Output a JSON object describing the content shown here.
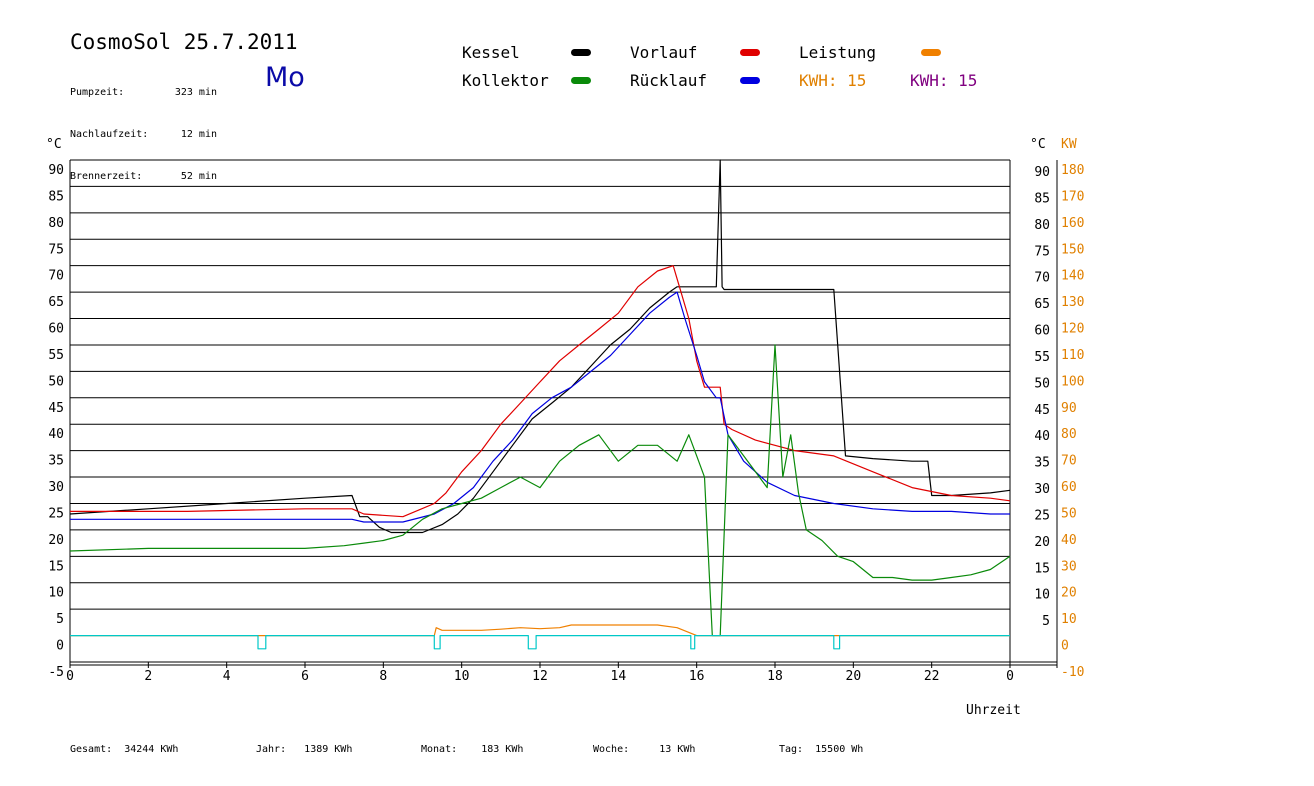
{
  "header": {
    "title": "CosmoSol 25.7.2011",
    "day": "Mo",
    "info": [
      {
        "label": "Pumpzeit:",
        "value": "323 min"
      },
      {
        "label": "Nachlaufzeit:",
        "value": "12 min"
      },
      {
        "label": "Brennerzeit:",
        "value": "52 min"
      }
    ]
  },
  "legend": {
    "items": [
      {
        "label": "Kessel",
        "color": "#000000"
      },
      {
        "label": "Vorlauf",
        "color": "#e00000"
      },
      {
        "label": "Leistung",
        "color": "#f08000"
      },
      {
        "label": "Kollektor",
        "color": "#0a8a0a"
      },
      {
        "label": "Rücklauf",
        "color": "#0000e0"
      }
    ],
    "kwh": [
      {
        "label": "KWH:",
        "value": "15",
        "color": "#e08000"
      },
      {
        "label": "KWH:",
        "value": "15",
        "color": "#800080"
      }
    ]
  },
  "footer": [
    {
      "label": "Gesamt:",
      "value": "34244 KWh"
    },
    {
      "label": "Jahr:",
      "value": "1389 KWh"
    },
    {
      "label": "Monat:",
      "value": "183 KWh"
    },
    {
      "label": "Woche:",
      "value": "13 KWh"
    },
    {
      "label": "Tag:",
      "value": "15500 Wh"
    }
  ],
  "chart_data": {
    "type": "line",
    "xlabel": "Uhrzeit",
    "ylabel_left": "°C",
    "ylabel_right_1": "°C",
    "ylabel_right_2": "KW",
    "xlim": [
      0,
      24
    ],
    "ylim": [
      -5,
      90
    ],
    "x_ticks": [
      "0",
      "2",
      "4",
      "6",
      "8",
      "10",
      "12",
      "14",
      "16",
      "18",
      "20",
      "22",
      "0"
    ],
    "y_ticks_left": [
      "-5",
      "0",
      "5",
      "10",
      "15",
      "20",
      "25",
      "30",
      "35",
      "40",
      "45",
      "50",
      "55",
      "60",
      "65",
      "70",
      "75",
      "80",
      "85",
      "90"
    ],
    "y_ticks_right": [
      "5",
      "10",
      "15",
      "20",
      "25",
      "30",
      "35",
      "40",
      "45",
      "50",
      "55",
      "60",
      "65",
      "70",
      "75",
      "80",
      "85",
      "90"
    ],
    "kw_ticks": [
      "-10",
      "0",
      "10",
      "20",
      "30",
      "40",
      "50",
      "60",
      "70",
      "80",
      "90",
      "100",
      "110",
      "120",
      "130",
      "140",
      "150",
      "160",
      "170",
      "180"
    ],
    "grid": true,
    "series": [
      {
        "name": "Kessel",
        "color": "#000000",
        "x": [
          0,
          2,
          4,
          6,
          7.2,
          7.4,
          7.6,
          7.9,
          8.2,
          9.0,
          9.5,
          9.9,
          10.3,
          10.8,
          11.3,
          11.8,
          12.3,
          12.8,
          13.3,
          13.8,
          14.3,
          14.8,
          15.3,
          15.5,
          15.7,
          16.2,
          16.5,
          16.6,
          16.65,
          16.7,
          16.8,
          17.5,
          18.5,
          19.3,
          19.5,
          19.6,
          19.8,
          20.5,
          21.5,
          21.9,
          22.0,
          22.5,
          23.5,
          24
        ],
        "y": [
          23,
          24,
          25,
          26,
          26.5,
          22.5,
          22.5,
          20.5,
          19.5,
          19.5,
          21,
          23,
          26,
          31,
          36,
          41,
          44,
          47,
          51,
          55,
          58,
          62,
          65,
          66,
          66,
          66,
          66,
          90,
          66,
          65.5,
          65.5,
          65.5,
          65.5,
          65.5,
          65.5,
          55,
          34,
          33.5,
          33,
          33,
          26.5,
          26.5,
          27,
          27.5
        ]
      },
      {
        "name": "Vorlauf",
        "color": "#e00000",
        "x": [
          0,
          3,
          6,
          7.2,
          7.5,
          8.5,
          9.3,
          9.6,
          10.0,
          10.5,
          11.0,
          11.5,
          12.0,
          12.5,
          13.0,
          13.5,
          14.0,
          14.5,
          15.0,
          15.4,
          15.6,
          15.8,
          16.0,
          16.2,
          16.6,
          16.7,
          16.9,
          17.5,
          18.5,
          19.5,
          20.5,
          21.5,
          22.5,
          23.5,
          24
        ],
        "y": [
          23.5,
          23.5,
          24,
          24,
          23,
          22.5,
          25,
          27,
          31,
          35,
          40,
          44,
          48,
          52,
          55,
          58,
          61,
          66,
          69,
          70,
          65,
          60,
          52,
          47,
          47,
          40,
          39,
          37,
          35,
          34,
          31,
          28,
          26.5,
          26,
          25.5
        ]
      },
      {
        "name": "Rücklauf",
        "color": "#0000e0",
        "x": [
          0,
          3,
          6,
          7.2,
          7.5,
          8.5,
          9.3,
          9.8,
          10.3,
          10.8,
          11.3,
          11.8,
          12.3,
          12.8,
          13.3,
          13.8,
          14.3,
          14.8,
          15.3,
          15.5,
          15.7,
          16.0,
          16.2,
          16.5,
          16.6,
          16.8,
          17.2,
          17.8,
          18.5,
          19.5,
          20.5,
          21.5,
          22.5,
          23.5,
          24
        ],
        "y": [
          22,
          22,
          22,
          22,
          21.5,
          21.5,
          23,
          25,
          28,
          33,
          37,
          42,
          45,
          47,
          50,
          53,
          57,
          61,
          64,
          65,
          60,
          53,
          48,
          45,
          45,
          38,
          33,
          29,
          26.5,
          25,
          24,
          23.5,
          23.5,
          23,
          23
        ]
      },
      {
        "name": "Kollektor",
        "color": "#0a8a0a",
        "x": [
          0,
          2,
          4,
          6,
          7,
          7.5,
          8.0,
          8.5,
          9.0,
          9.5,
          10.0,
          10.5,
          11.0,
          11.5,
          12.0,
          12.5,
          13.0,
          13.5,
          14.0,
          14.5,
          15.0,
          15.5,
          15.8,
          16.0,
          16.2,
          16.4,
          16.6,
          16.8,
          17.2,
          17.8,
          18.0,
          18.2,
          18.4,
          18.6,
          18.8,
          19.2,
          19.6,
          20.0,
          20.5,
          21.0,
          21.5,
          22.0,
          22.5,
          23.0,
          23.5,
          24
        ],
        "y": [
          16,
          16.5,
          16.5,
          16.5,
          17,
          17.5,
          18,
          19,
          22,
          24,
          25,
          26,
          28,
          30,
          28,
          33,
          36,
          38,
          33,
          36,
          36,
          33,
          38,
          34,
          30,
          0,
          0,
          38,
          34,
          28,
          55,
          30,
          38,
          27,
          20,
          18,
          15,
          14,
          11,
          11,
          10.5,
          10.5,
          11,
          11.5,
          12.5,
          15
        ]
      },
      {
        "name": "Leistung",
        "color": "#f08000",
        "x": [
          0,
          9.3,
          9.35,
          9.5,
          10,
          10.5,
          11,
          11.5,
          12,
          12.5,
          12.8,
          13,
          13.5,
          14,
          14.5,
          15,
          15.5,
          16,
          24
        ],
        "y": [
          0,
          0,
          1.5,
          1,
          1,
          1,
          1.2,
          1.5,
          1.3,
          1.5,
          2,
          2,
          2,
          2,
          2,
          2,
          1.5,
          0,
          0
        ]
      },
      {
        "name": "Pumpe",
        "color": "#00c8c8",
        "x": [
          0,
          4.8,
          4.8,
          5.0,
          5.0,
          9.3,
          9.3,
          9.45,
          9.45,
          11.7,
          11.7,
          11.9,
          11.9,
          15.85,
          15.85,
          15.95,
          15.95,
          19.5,
          19.5,
          19.65,
          19.65,
          24
        ],
        "y": [
          0,
          0,
          -2.5,
          -2.5,
          0,
          0,
          -2.5,
          -2.5,
          0,
          0,
          -2.5,
          -2.5,
          0,
          0,
          -2.5,
          -2.5,
          0,
          0,
          -2.5,
          -2.5,
          0,
          0
        ]
      }
    ]
  }
}
